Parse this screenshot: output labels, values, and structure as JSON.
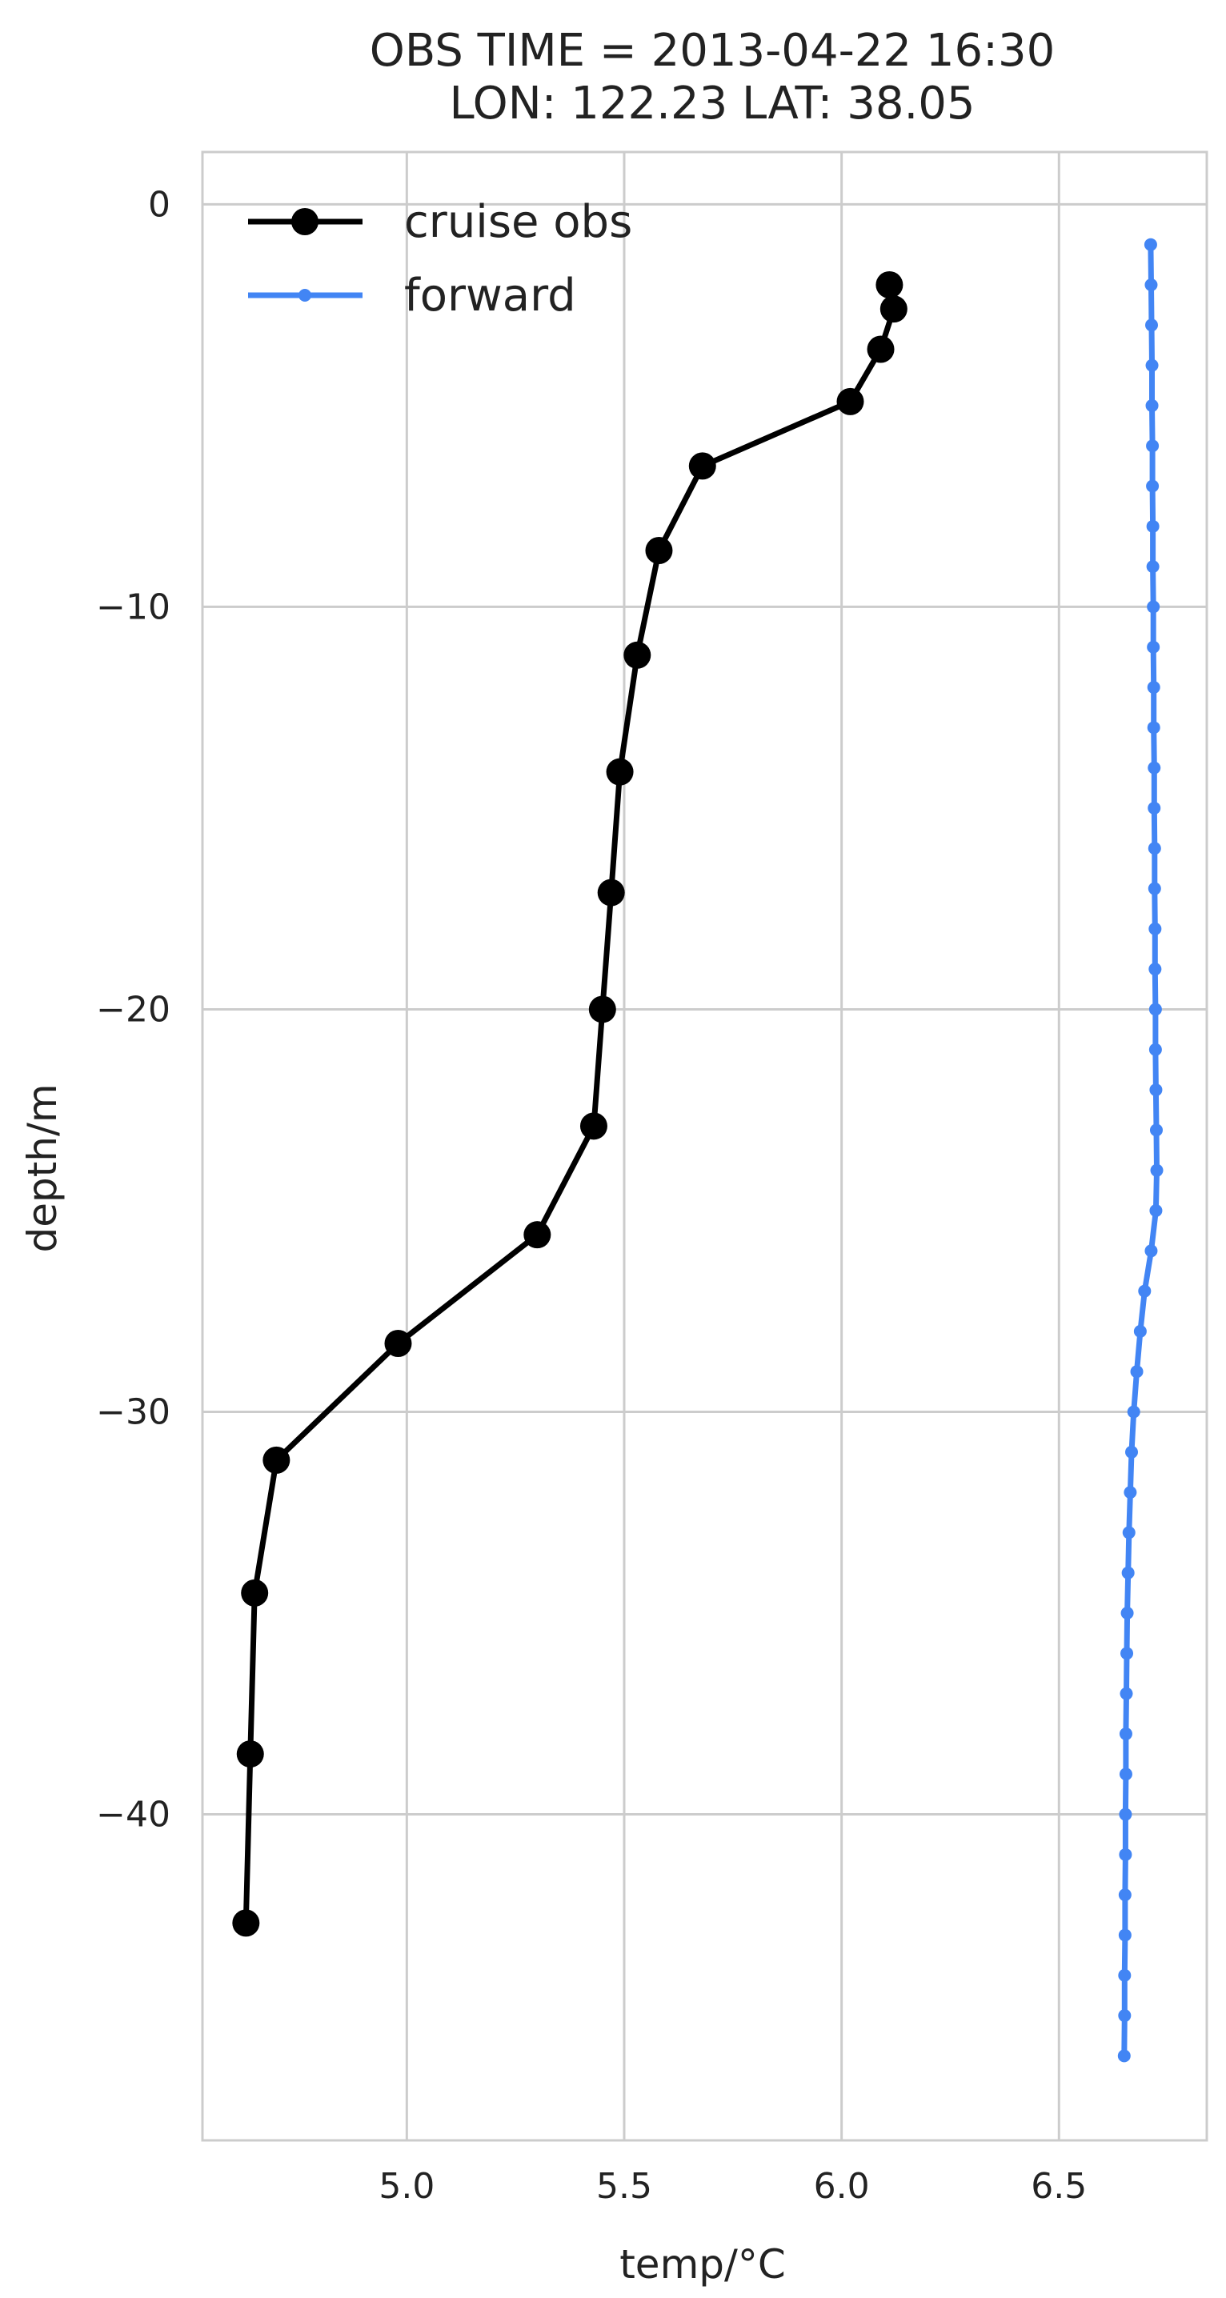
{
  "chart_data": {
    "type": "line",
    "title_lines": [
      "OBS TIME = 2013-04-22 16:30",
      "LON: 122.23 LAT: 38.05"
    ],
    "xlabel": "temp/°C",
    "ylabel": "depth/m",
    "xlim": [
      4.53,
      6.84
    ],
    "ylim": [
      -48.1,
      1.3
    ],
    "xticks": [
      5.0,
      5.5,
      6.0,
      6.5
    ],
    "xtick_labels": [
      "5.0",
      "5.5",
      "6.0",
      "6.5"
    ],
    "yticks": [
      0,
      -10,
      -20,
      -30,
      -40
    ],
    "ytick_labels": [
      "0",
      "−10",
      "−20",
      "−30",
      "−40"
    ],
    "grid": true,
    "legend_position": "upper-left",
    "series": [
      {
        "name": "cruise obs",
        "color": "#000000",
        "marker": "large-circle",
        "points": [
          {
            "x": 6.11,
            "y": -2.0
          },
          {
            "x": 6.12,
            "y": -2.6
          },
          {
            "x": 6.09,
            "y": -3.6
          },
          {
            "x": 6.02,
            "y": -4.9
          },
          {
            "x": 5.68,
            "y": -6.5
          },
          {
            "x": 5.58,
            "y": -8.6
          },
          {
            "x": 5.53,
            "y": -11.2
          },
          {
            "x": 5.49,
            "y": -14.1
          },
          {
            "x": 5.47,
            "y": -17.1
          },
          {
            "x": 5.45,
            "y": -20.0
          },
          {
            "x": 5.43,
            "y": -22.9
          },
          {
            "x": 5.3,
            "y": -25.6
          },
          {
            "x": 4.98,
            "y": -28.3
          },
          {
            "x": 4.7,
            "y": -31.2
          },
          {
            "x": 4.65,
            "y": -34.5
          },
          {
            "x": 4.64,
            "y": -38.5
          },
          {
            "x": 4.63,
            "y": -42.7
          }
        ]
      },
      {
        "name": "forward",
        "color": "#4285f4",
        "marker": "small-circle",
        "points": [
          {
            "x": 6.711,
            "y": -1
          },
          {
            "x": 6.712,
            "y": -2
          },
          {
            "x": 6.713,
            "y": -3
          },
          {
            "x": 6.714,
            "y": -4
          },
          {
            "x": 6.714,
            "y": -5
          },
          {
            "x": 6.715,
            "y": -6
          },
          {
            "x": 6.715,
            "y": -7
          },
          {
            "x": 6.716,
            "y": -8
          },
          {
            "x": 6.716,
            "y": -9
          },
          {
            "x": 6.717,
            "y": -10
          },
          {
            "x": 6.717,
            "y": -11
          },
          {
            "x": 6.718,
            "y": -12
          },
          {
            "x": 6.718,
            "y": -13
          },
          {
            "x": 6.719,
            "y": -14
          },
          {
            "x": 6.719,
            "y": -15
          },
          {
            "x": 6.72,
            "y": -16
          },
          {
            "x": 6.72,
            "y": -17
          },
          {
            "x": 6.721,
            "y": -18
          },
          {
            "x": 6.721,
            "y": -19
          },
          {
            "x": 6.722,
            "y": -20
          },
          {
            "x": 6.722,
            "y": -21
          },
          {
            "x": 6.723,
            "y": -22
          },
          {
            "x": 6.724,
            "y": -23
          },
          {
            "x": 6.725,
            "y": -24
          },
          {
            "x": 6.723,
            "y": -25
          },
          {
            "x": 6.712,
            "y": -26
          },
          {
            "x": 6.697,
            "y": -27
          },
          {
            "x": 6.687,
            "y": -28
          },
          {
            "x": 6.679,
            "y": -29
          },
          {
            "x": 6.672,
            "y": -30
          },
          {
            "x": 6.667,
            "y": -31
          },
          {
            "x": 6.664,
            "y": -32
          },
          {
            "x": 6.661,
            "y": -33
          },
          {
            "x": 6.659,
            "y": -34
          },
          {
            "x": 6.657,
            "y": -35
          },
          {
            "x": 6.656,
            "y": -36
          },
          {
            "x": 6.655,
            "y": -37
          },
          {
            "x": 6.654,
            "y": -38
          },
          {
            "x": 6.654,
            "y": -39
          },
          {
            "x": 6.653,
            "y": -40
          },
          {
            "x": 6.653,
            "y": -41
          },
          {
            "x": 6.652,
            "y": -42
          },
          {
            "x": 6.652,
            "y": -43
          },
          {
            "x": 6.651,
            "y": -44
          },
          {
            "x": 6.651,
            "y": -45
          },
          {
            "x": 6.65,
            "y": -46
          }
        ]
      }
    ]
  },
  "colors": {
    "grid": "#cccccc",
    "frame": "#cccccc",
    "text": "#222222"
  }
}
